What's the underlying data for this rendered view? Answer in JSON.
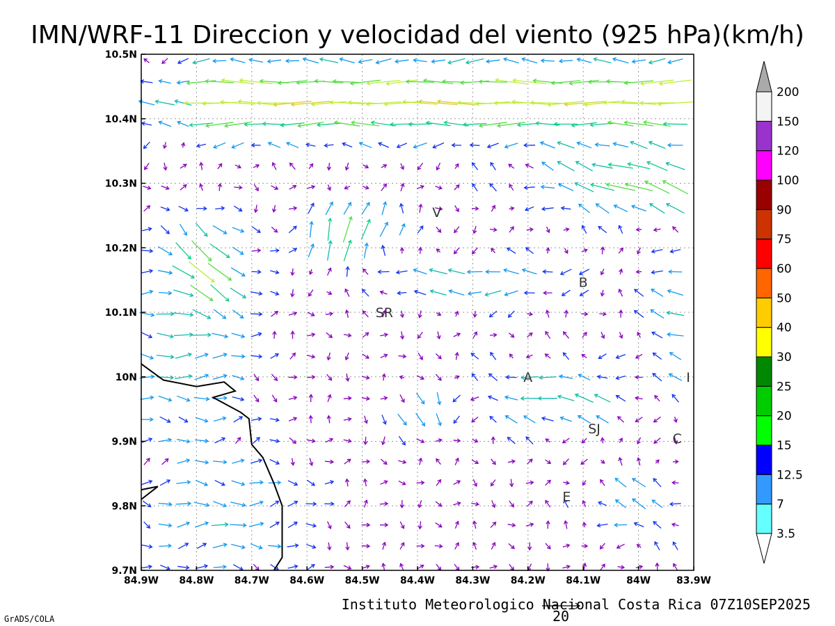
{
  "title": "IMN/WRF-11 Direccion y velocidad del viento (925 hPa)(km/h)",
  "footer": "Instituto Meteorologico Nacional Costa Rica 07Z10SEP2025",
  "credit": "GrADS/COLA",
  "reference_vector_label": "20",
  "x_ticks": [
    {
      "label": "84.9W",
      "lon": -84.9
    },
    {
      "label": "84.8W",
      "lon": -84.8
    },
    {
      "label": "84.7W",
      "lon": -84.7
    },
    {
      "label": "84.6W",
      "lon": -84.6
    },
    {
      "label": "84.5W",
      "lon": -84.5
    },
    {
      "label": "84.4W",
      "lon": -84.4
    },
    {
      "label": "84.3W",
      "lon": -84.3
    },
    {
      "label": "84.2W",
      "lon": -84.2
    },
    {
      "label": "84.1W",
      "lon": -84.1
    },
    {
      "label": "84W",
      "lon": -84.0
    },
    {
      "label": "83.9W",
      "lon": -83.9
    }
  ],
  "y_ticks": [
    {
      "label": "10.5N",
      "lat": 10.5
    },
    {
      "label": "10.4N",
      "lat": 10.4
    },
    {
      "label": "10.3N",
      "lat": 10.3
    },
    {
      "label": "10.2N",
      "lat": 10.2
    },
    {
      "label": "10.1N",
      "lat": 10.1
    },
    {
      "label": "10N",
      "lat": 10.0
    },
    {
      "label": "9.9N",
      "lat": 9.9
    },
    {
      "label": "9.8N",
      "lat": 9.8
    },
    {
      "label": "9.7N",
      "lat": 9.7
    }
  ],
  "extent": {
    "lon_min": -84.9,
    "lon_max": -83.9,
    "lat_min": 9.7,
    "lat_max": 10.5
  },
  "cities": [
    {
      "label": "V",
      "lon": -84.365,
      "lat": 10.255
    },
    {
      "label": "B",
      "lon": -84.1,
      "lat": 10.147
    },
    {
      "label": "SR",
      "lon": -84.46,
      "lat": 10.1
    },
    {
      "label": "A",
      "lon": -84.2,
      "lat": 10.0
    },
    {
      "label": "SJ",
      "lon": -84.08,
      "lat": 9.92
    },
    {
      "label": "C",
      "lon": -83.93,
      "lat": 9.905
    },
    {
      "label": "I",
      "lon": -83.91,
      "lat": 10.0
    },
    {
      "label": "E",
      "lon": -84.13,
      "lat": 9.815
    }
  ],
  "colorbar": {
    "bins": [
      {
        "color": "#66ffff",
        "label": "3.5"
      },
      {
        "color": "#3399ff",
        "label": "7"
      },
      {
        "color": "#0000ff",
        "label": "12.5"
      },
      {
        "color": "#00ff00",
        "label": "15"
      },
      {
        "color": "#00cc00",
        "label": "20"
      },
      {
        "color": "#008800",
        "label": "25"
      },
      {
        "color": "#ffff00",
        "label": "30"
      },
      {
        "color": "#ffcc00",
        "label": "40"
      },
      {
        "color": "#ff6600",
        "label": "50"
      },
      {
        "color": "#ff0000",
        "label": "60"
      },
      {
        "color": "#cc3300",
        "label": "75"
      },
      {
        "color": "#990000",
        "label": "90"
      },
      {
        "color": "#ff00ff",
        "label": "100"
      },
      {
        "color": "#9933cc",
        "label": "120"
      },
      {
        "color": "#f4f4f4",
        "label": "150"
      }
    ],
    "top_label": "200",
    "top_triangle_color": "#aaaaaa",
    "bottom_triangle_color": "#ffffff"
  },
  "coastline": [
    [
      -84.9,
      10.02
    ],
    [
      -84.86,
      9.995
    ],
    [
      -84.8,
      9.985
    ],
    [
      -84.75,
      9.992
    ],
    [
      -84.73,
      9.978
    ],
    [
      -84.77,
      9.968
    ],
    [
      -84.72,
      9.945
    ],
    [
      -84.705,
      9.935
    ],
    [
      -84.7,
      9.895
    ],
    [
      -84.68,
      9.875
    ],
    [
      -84.66,
      9.835
    ],
    [
      -84.645,
      9.8
    ],
    [
      -84.645,
      9.72
    ],
    [
      -84.66,
      9.7
    ]
  ],
  "coastline_small": [
    [
      -84.9,
      9.825
    ],
    [
      -84.87,
      9.83
    ],
    [
      -84.9,
      9.81
    ]
  ],
  "wind_legend_colors": {
    "purple": "#8800bb",
    "blue": "#1133ee",
    "light_blue": "#1199ee",
    "cyan": "#11bbaa",
    "teal": "#11cc88",
    "green": "#55dd44",
    "yellow_green": "#bbee33",
    "yellow": "#ddcc22",
    "orange": "#eeaa22"
  }
}
